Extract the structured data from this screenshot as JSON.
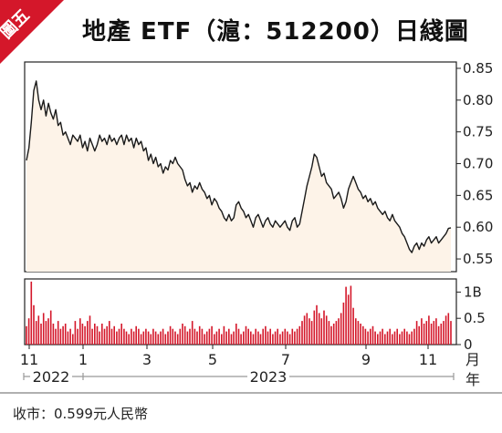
{
  "badge": {
    "label": "圖五",
    "color": "#d4172a"
  },
  "title": "地產 ETF（滬：512200）日綫圖",
  "footer": "收市：0.599元人民幣",
  "colors": {
    "line": "#1a1a1a",
    "area": "#fdf3e8",
    "volume": "#d4172a",
    "axis": "#222222"
  },
  "chart_data": [
    {
      "type": "line",
      "y_ticks": [
        "0.85",
        "0.80",
        "0.75",
        "0.70",
        "0.65",
        "0.60",
        "0.55"
      ],
      "ylim": [
        0.53,
        0.86
      ],
      "x_ticks": [
        "11",
        "1",
        "3",
        "5",
        "7",
        "9",
        "11"
      ],
      "x_unit": "月",
      "year_labels": [
        "2022",
        "2023"
      ],
      "year_unit": "年",
      "series": [
        {
          "values": [
            0.705,
            0.725,
            0.765,
            0.815,
            0.83,
            0.8,
            0.785,
            0.8,
            0.775,
            0.795,
            0.78,
            0.77,
            0.785,
            0.76,
            0.765,
            0.745,
            0.75,
            0.74,
            0.73,
            0.745,
            0.74,
            0.735,
            0.745,
            0.725,
            0.735,
            0.72,
            0.74,
            0.73,
            0.72,
            0.73,
            0.745,
            0.735,
            0.74,
            0.73,
            0.745,
            0.735,
            0.74,
            0.73,
            0.74,
            0.745,
            0.73,
            0.745,
            0.735,
            0.74,
            0.725,
            0.74,
            0.73,
            0.735,
            0.72,
            0.725,
            0.705,
            0.715,
            0.7,
            0.71,
            0.695,
            0.7,
            0.685,
            0.695,
            0.69,
            0.705,
            0.7,
            0.71,
            0.7,
            0.695,
            0.69,
            0.675,
            0.665,
            0.67,
            0.655,
            0.665,
            0.66,
            0.67,
            0.66,
            0.655,
            0.645,
            0.65,
            0.635,
            0.645,
            0.64,
            0.63,
            0.625,
            0.615,
            0.61,
            0.62,
            0.61,
            0.615,
            0.635,
            0.64,
            0.63,
            0.625,
            0.615,
            0.62,
            0.61,
            0.6,
            0.615,
            0.62,
            0.61,
            0.6,
            0.61,
            0.615,
            0.605,
            0.6,
            0.61,
            0.605,
            0.6,
            0.605,
            0.61,
            0.6,
            0.595,
            0.61,
            0.615,
            0.6,
            0.605,
            0.625,
            0.645,
            0.665,
            0.68,
            0.695,
            0.715,
            0.71,
            0.695,
            0.68,
            0.685,
            0.67,
            0.665,
            0.66,
            0.645,
            0.65,
            0.655,
            0.645,
            0.63,
            0.64,
            0.66,
            0.67,
            0.68,
            0.67,
            0.66,
            0.655,
            0.645,
            0.65,
            0.64,
            0.645,
            0.635,
            0.64,
            0.63,
            0.625,
            0.62,
            0.625,
            0.615,
            0.61,
            0.62,
            0.61,
            0.605,
            0.6,
            0.59,
            0.585,
            0.575,
            0.565,
            0.56,
            0.57,
            0.575,
            0.565,
            0.575,
            0.57,
            0.58,
            0.585,
            0.575,
            0.58,
            0.585,
            0.575,
            0.58,
            0.585,
            0.59,
            0.598,
            0.599
          ]
        }
      ]
    },
    {
      "type": "bar",
      "y_ticks": [
        "1B",
        "0.5",
        "0"
      ],
      "ylim": [
        0,
        1.25
      ],
      "series": [
        {
          "values": [
            0.35,
            0.5,
            1.2,
            0.75,
            0.45,
            0.55,
            0.4,
            0.6,
            0.45,
            0.5,
            0.65,
            0.4,
            0.3,
            0.45,
            0.3,
            0.35,
            0.4,
            0.25,
            0.3,
            0.2,
            0.45,
            0.3,
            0.5,
            0.4,
            0.35,
            0.45,
            0.55,
            0.3,
            0.4,
            0.35,
            0.25,
            0.4,
            0.3,
            0.35,
            0.45,
            0.3,
            0.35,
            0.25,
            0.3,
            0.4,
            0.3,
            0.25,
            0.2,
            0.3,
            0.25,
            0.35,
            0.3,
            0.2,
            0.25,
            0.3,
            0.25,
            0.2,
            0.3,
            0.25,
            0.2,
            0.25,
            0.3,
            0.2,
            0.25,
            0.35,
            0.3,
            0.25,
            0.2,
            0.3,
            0.4,
            0.35,
            0.25,
            0.3,
            0.45,
            0.3,
            0.25,
            0.35,
            0.3,
            0.2,
            0.25,
            0.3,
            0.35,
            0.2,
            0.25,
            0.3,
            0.2,
            0.35,
            0.25,
            0.3,
            0.2,
            0.25,
            0.4,
            0.3,
            0.2,
            0.25,
            0.35,
            0.3,
            0.25,
            0.2,
            0.3,
            0.25,
            0.2,
            0.3,
            0.35,
            0.25,
            0.3,
            0.2,
            0.25,
            0.3,
            0.2,
            0.25,
            0.3,
            0.25,
            0.2,
            0.3,
            0.25,
            0.3,
            0.35,
            0.45,
            0.55,
            0.6,
            0.5,
            0.45,
            0.65,
            0.75,
            0.6,
            0.5,
            0.65,
            0.55,
            0.45,
            0.35,
            0.4,
            0.45,
            0.5,
            0.6,
            0.8,
            1.1,
            0.95,
            1.12,
            0.7,
            0.5,
            0.45,
            0.4,
            0.35,
            0.3,
            0.25,
            0.3,
            0.35,
            0.25,
            0.2,
            0.25,
            0.3,
            0.2,
            0.25,
            0.3,
            0.2,
            0.25,
            0.3,
            0.2,
            0.25,
            0.3,
            0.25,
            0.2,
            0.25,
            0.3,
            0.45,
            0.35,
            0.5,
            0.4,
            0.45,
            0.55,
            0.4,
            0.45,
            0.5,
            0.35,
            0.4,
            0.45,
            0.55,
            0.6,
            0.45
          ]
        }
      ]
    }
  ]
}
